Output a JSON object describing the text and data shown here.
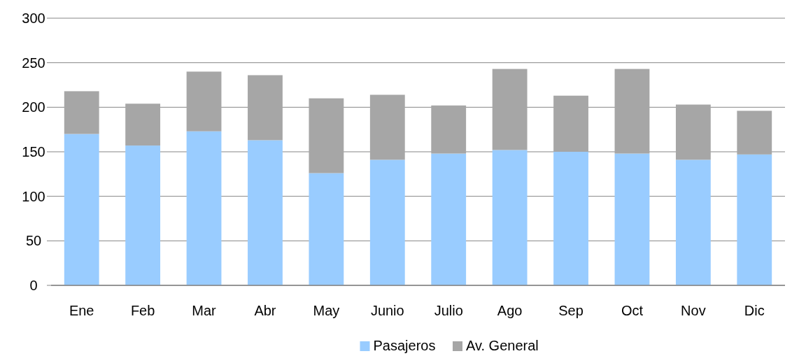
{
  "chart_data": {
    "type": "bar",
    "stacked": true,
    "categories": [
      "Ene",
      "Feb",
      "Mar",
      "Abr",
      "May",
      "Junio",
      "Julio",
      "Ago",
      "Sep",
      "Oct",
      "Nov",
      "Dic"
    ],
    "series": [
      {
        "name": "Pasajeros",
        "color": "#99ccff",
        "values": [
          170,
          157,
          173,
          163,
          126,
          141,
          148,
          152,
          150,
          148,
          141,
          147
        ]
      },
      {
        "name": "Av. General",
        "color": "#a6a6a6",
        "values": [
          48,
          47,
          67,
          73,
          84,
          73,
          54,
          91,
          63,
          95,
          62,
          49
        ]
      }
    ],
    "ylim": [
      0,
      300
    ],
    "yticks": [
      0,
      50,
      100,
      150,
      200,
      250,
      300
    ],
    "grid": "y",
    "legend": "bottom"
  }
}
